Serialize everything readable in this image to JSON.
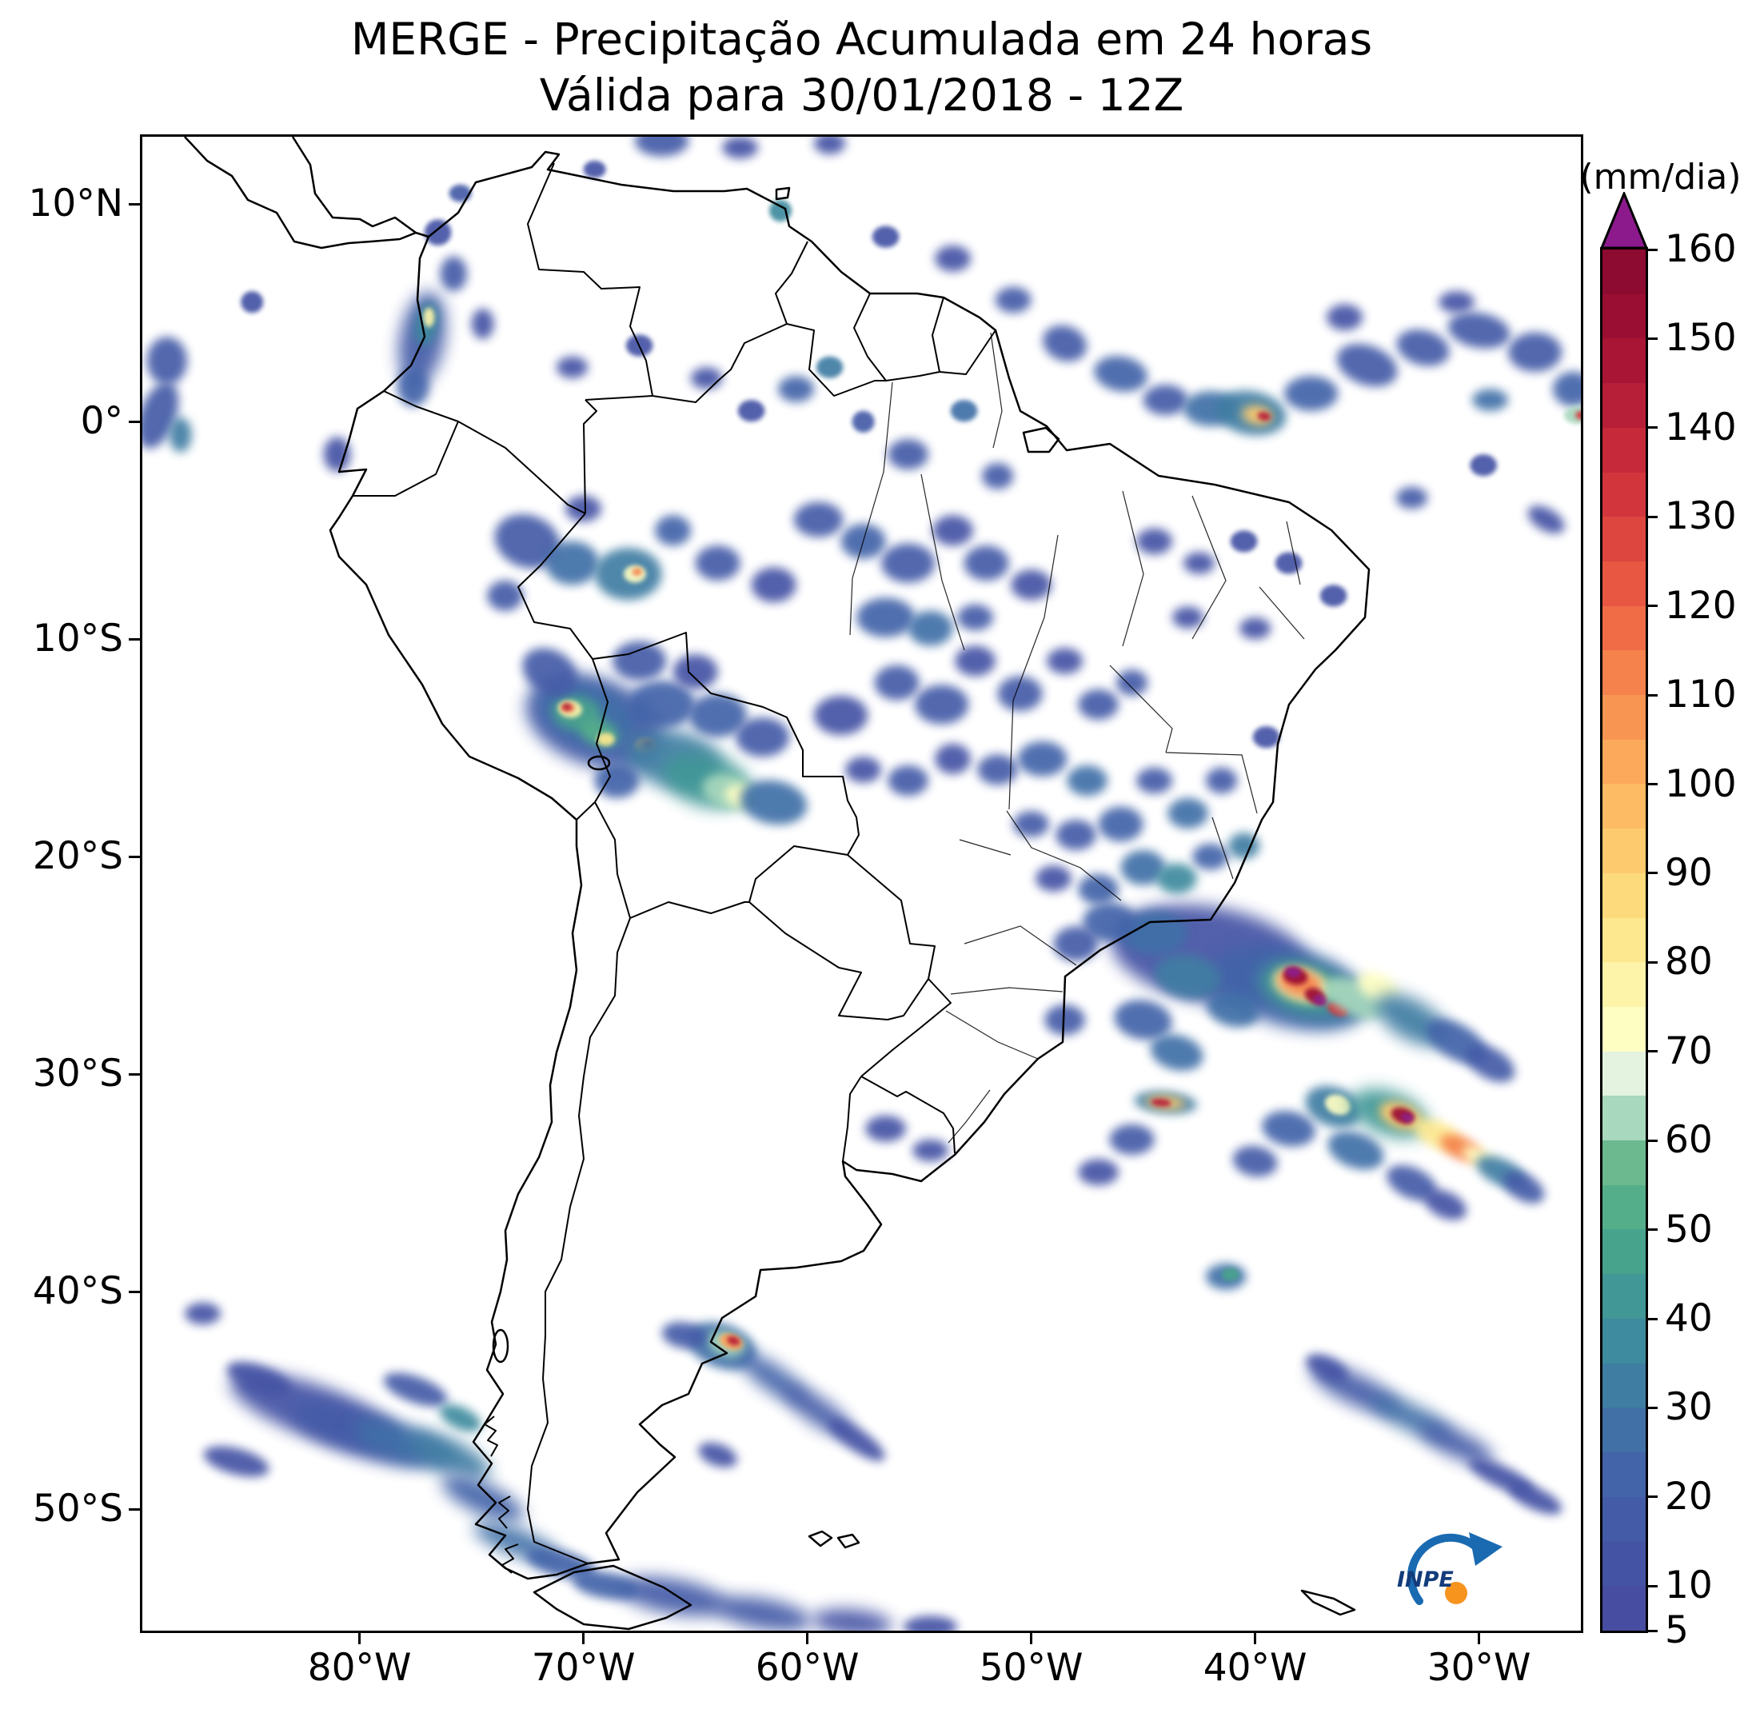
{
  "title": {
    "line1": "MERGE - Precipitação Acumulada em 24 horas",
    "line2": "Válida para 30/01/2018 - 12Z"
  },
  "colorbar": {
    "unit_label": "(mm/dia)",
    "vmin": 5,
    "vmax": 160,
    "step": 5,
    "tick_values": [
      160,
      150,
      140,
      130,
      120,
      110,
      100,
      90,
      80,
      70,
      60,
      50,
      40,
      30,
      20,
      10,
      5
    ],
    "segment_colors": [
      "#474da0",
      "#4553a4",
      "#445ba7",
      "#4364a9",
      "#4170a7",
      "#3f7da3",
      "#3e8a9e",
      "#419796",
      "#48a38d",
      "#55ae8a",
      "#6cb98f",
      "#a8d8bd",
      "#e3f3e0",
      "#fefec2",
      "#fdf3a9",
      "#fde88f",
      "#fdda7c",
      "#fdcb6e",
      "#fdbb63",
      "#fca95b",
      "#f99553",
      "#f5814c",
      "#ef6c46",
      "#e75742",
      "#dd453f",
      "#d2353c",
      "#c5293a",
      "#b71e38",
      "#a91535",
      "#9b0e33",
      "#8d0a30"
    ],
    "over_color": "#8c1a8c"
  },
  "axes": {
    "x_ticks": [
      {
        "label": "80°W",
        "lon": -80
      },
      {
        "label": "70°W",
        "lon": -70
      },
      {
        "label": "60°W",
        "lon": -60
      },
      {
        "label": "50°W",
        "lon": -50
      },
      {
        "label": "40°W",
        "lon": -40
      },
      {
        "label": "30°W",
        "lon": -30
      }
    ],
    "y_ticks": [
      {
        "label": "10°N",
        "lat": 10
      },
      {
        "label": "0°",
        "lat": 0
      },
      {
        "label": "10°S",
        "lat": -10
      },
      {
        "label": "20°S",
        "lat": -20
      },
      {
        "label": "30°S",
        "lat": -30
      },
      {
        "label": "40°S",
        "lat": -40
      },
      {
        "label": "50°S",
        "lat": -50
      }
    ]
  },
  "logo": {
    "label": "INPE"
  },
  "precip_blobs_format": [
    "lon_deg",
    "lat_deg",
    "rx_deg",
    "ry_deg",
    "rotation_deg",
    "value_mm_dia"
  ],
  "precip_blobs": [
    [
      -77.2,
      3.8,
      1.0,
      2.2,
      10,
      15
    ],
    [
      -77.0,
      4.5,
      0.5,
      1.0,
      10,
      35
    ],
    [
      -76.9,
      4.8,
      0.25,
      0.45,
      0,
      75
    ],
    [
      -77.6,
      1.6,
      0.7,
      0.9,
      0,
      20
    ],
    [
      -75.8,
      6.8,
      0.6,
      0.8,
      0,
      15
    ],
    [
      -74.5,
      4.5,
      0.5,
      0.7,
      0,
      10
    ],
    [
      -76.5,
      8.7,
      0.6,
      0.6,
      0,
      12
    ],
    [
      -75.5,
      10.5,
      0.5,
      0.4,
      0,
      15
    ],
    [
      -88.6,
      2.8,
      0.9,
      1.1,
      0,
      15
    ],
    [
      -89.0,
      0.3,
      0.8,
      1.6,
      20,
      18
    ],
    [
      -88.0,
      -0.6,
      0.5,
      0.8,
      0,
      30
    ],
    [
      -84.8,
      5.5,
      0.5,
      0.5,
      0,
      10
    ],
    [
      -66.5,
      12.9,
      1.2,
      0.7,
      0,
      15
    ],
    [
      -63.0,
      12.6,
      0.8,
      0.5,
      0,
      12
    ],
    [
      -61.2,
      9.7,
      0.5,
      0.5,
      0,
      35
    ],
    [
      -69.5,
      11.6,
      0.5,
      0.4,
      0,
      12
    ],
    [
      -59.0,
      12.8,
      0.7,
      0.5,
      0,
      10
    ],
    [
      -50.8,
      5.6,
      0.8,
      0.6,
      0,
      15
    ],
    [
      -48.5,
      3.6,
      1.0,
      0.8,
      20,
      18
    ],
    [
      -46.0,
      2.2,
      1.2,
      0.8,
      10,
      20
    ],
    [
      -44.0,
      1.0,
      1.0,
      0.7,
      0,
      18
    ],
    [
      -42.0,
      0.6,
      1.2,
      0.8,
      0,
      25
    ],
    [
      -40.2,
      0.4,
      1.6,
      1.0,
      10,
      30
    ],
    [
      -39.9,
      0.3,
      0.7,
      0.45,
      10,
      90
    ],
    [
      -39.6,
      0.25,
      0.3,
      0.2,
      10,
      140
    ],
    [
      -37.5,
      1.3,
      1.2,
      0.8,
      0,
      22
    ],
    [
      -35.0,
      2.6,
      1.4,
      0.9,
      20,
      18
    ],
    [
      -32.5,
      3.4,
      1.2,
      0.8,
      15,
      15
    ],
    [
      -30.0,
      4.2,
      1.4,
      0.8,
      10,
      15
    ],
    [
      -27.5,
      3.2,
      1.2,
      0.9,
      0,
      18
    ],
    [
      -25.8,
      1.5,
      0.9,
      0.8,
      0,
      20
    ],
    [
      -25.6,
      0.3,
      0.6,
      0.4,
      0,
      60
    ],
    [
      -25.4,
      0.3,
      0.3,
      0.2,
      0,
      130
    ],
    [
      -29.5,
      1.0,
      0.8,
      0.5,
      0,
      25
    ],
    [
      -33.0,
      -3.5,
      0.7,
      0.5,
      0,
      15
    ],
    [
      -29.8,
      -2.0,
      0.6,
      0.5,
      0,
      12
    ],
    [
      -27.0,
      -4.5,
      0.9,
      0.5,
      30,
      12
    ],
    [
      -31.0,
      5.5,
      0.8,
      0.5,
      0,
      12
    ],
    [
      -36.0,
      4.8,
      0.8,
      0.6,
      0,
      12
    ],
    [
      -53.5,
      7.5,
      0.8,
      0.6,
      0,
      12
    ],
    [
      -56.5,
      8.5,
      0.6,
      0.5,
      0,
      10
    ],
    [
      -60.5,
      1.5,
      0.8,
      0.6,
      0,
      20
    ],
    [
      -59.0,
      2.5,
      0.6,
      0.5,
      0,
      30
    ],
    [
      -55.5,
      -1.5,
      0.9,
      0.7,
      0,
      18
    ],
    [
      -53.0,
      0.5,
      0.6,
      0.5,
      0,
      25
    ],
    [
      -51.5,
      -2.5,
      0.7,
      0.6,
      0,
      15
    ],
    [
      -57.5,
      0.0,
      0.5,
      0.5,
      0,
      15
    ],
    [
      -62.5,
      0.5,
      0.6,
      0.5,
      0,
      12
    ],
    [
      -64.5,
      2.0,
      0.7,
      0.5,
      0,
      10
    ],
    [
      -70.5,
      2.5,
      0.7,
      0.5,
      0,
      10
    ],
    [
      -67.5,
      3.5,
      0.6,
      0.5,
      0,
      12
    ],
    [
      -72.5,
      -5.5,
      1.5,
      1.2,
      20,
      18
    ],
    [
      -70.5,
      -6.5,
      1.2,
      1.0,
      0,
      25
    ],
    [
      -68.0,
      -7.0,
      1.5,
      1.2,
      0,
      30
    ],
    [
      -67.7,
      -7.0,
      0.5,
      0.4,
      0,
      70
    ],
    [
      -67.6,
      -6.9,
      0.22,
      0.18,
      0,
      110
    ],
    [
      -73.5,
      -8.0,
      0.8,
      0.7,
      0,
      15
    ],
    [
      -66.0,
      -5.0,
      0.8,
      0.7,
      0,
      20
    ],
    [
      -64.0,
      -6.5,
      1.0,
      0.8,
      0,
      15
    ],
    [
      -70.0,
      -4.0,
      0.8,
      0.6,
      0,
      12
    ],
    [
      -69.5,
      -13.8,
      3.2,
      2.0,
      20,
      15
    ],
    [
      -69.8,
      -13.5,
      2.2,
      1.4,
      20,
      25
    ],
    [
      -70.3,
      -13.4,
      1.1,
      0.8,
      10,
      45
    ],
    [
      -70.6,
      -13.2,
      0.55,
      0.4,
      10,
      75
    ],
    [
      -70.7,
      -13.15,
      0.3,
      0.2,
      0,
      120
    ],
    [
      -70.75,
      -13.1,
      0.16,
      0.12,
      0,
      150
    ],
    [
      -69.3,
      -14.3,
      0.9,
      0.6,
      20,
      50
    ],
    [
      -69.0,
      -14.6,
      0.4,
      0.3,
      0,
      80
    ],
    [
      -67.2,
      -14.9,
      0.5,
      0.35,
      0,
      100
    ],
    [
      -67.1,
      -14.85,
      0.22,
      0.16,
      0,
      140
    ],
    [
      -66.0,
      -15.5,
      2.2,
      1.3,
      10,
      30
    ],
    [
      -64.5,
      -16.5,
      2.0,
      1.2,
      15,
      40
    ],
    [
      -63.5,
      -17.0,
      1.2,
      0.8,
      15,
      60
    ],
    [
      -63.0,
      -17.2,
      0.7,
      0.5,
      15,
      70
    ],
    [
      -61.5,
      -17.5,
      1.5,
      1.0,
      10,
      25
    ],
    [
      -66.5,
      -13.0,
      1.5,
      1.1,
      0,
      22
    ],
    [
      -64.0,
      -13.5,
      1.3,
      1.0,
      0,
      20
    ],
    [
      -62.0,
      -14.5,
      1.2,
      0.9,
      0,
      18
    ],
    [
      -68.5,
      -16.5,
      1.0,
      0.8,
      0,
      20
    ],
    [
      -71.5,
      -11.5,
      1.3,
      1.0,
      30,
      15
    ],
    [
      -67.5,
      -11.0,
      1.2,
      0.9,
      0,
      15
    ],
    [
      -65.0,
      -11.5,
      1.0,
      0.8,
      0,
      12
    ],
    [
      -58.5,
      -13.5,
      1.2,
      0.9,
      0,
      12
    ],
    [
      -56.0,
      -12.0,
      1.0,
      0.8,
      0,
      15
    ],
    [
      -54.0,
      -13.0,
      1.2,
      0.9,
      0,
      18
    ],
    [
      -52.5,
      -11.0,
      0.9,
      0.7,
      0,
      12
    ],
    [
      -50.5,
      -12.5,
      1.0,
      0.8,
      0,
      15
    ],
    [
      -48.5,
      -11.0,
      0.8,
      0.6,
      0,
      12
    ],
    [
      -47.0,
      -13.0,
      0.9,
      0.7,
      0,
      18
    ],
    [
      -45.5,
      -12.0,
      0.7,
      0.6,
      0,
      15
    ],
    [
      -49.5,
      -15.5,
      1.1,
      0.8,
      0,
      20
    ],
    [
      -47.5,
      -16.5,
      0.9,
      0.7,
      0,
      25
    ],
    [
      -51.5,
      -16.0,
      0.9,
      0.7,
      0,
      15
    ],
    [
      -53.5,
      -15.5,
      0.8,
      0.7,
      0,
      12
    ],
    [
      -55.5,
      -16.5,
      0.9,
      0.7,
      0,
      15
    ],
    [
      -57.5,
      -16.0,
      0.8,
      0.6,
      0,
      12
    ],
    [
      -46.0,
      -18.5,
      1.0,
      0.8,
      0,
      22
    ],
    [
      -48.0,
      -19.0,
      0.9,
      0.7,
      0,
      18
    ],
    [
      -50.0,
      -18.5,
      0.8,
      0.6,
      0,
      15
    ],
    [
      -44.5,
      -16.5,
      0.8,
      0.6,
      0,
      18
    ],
    [
      -43.0,
      -18.0,
      0.9,
      0.7,
      0,
      25
    ],
    [
      -41.5,
      -16.5,
      0.7,
      0.6,
      0,
      15
    ],
    [
      -45.0,
      -20.5,
      1.0,
      0.8,
      0,
      28
    ],
    [
      -43.5,
      -21.0,
      0.9,
      0.7,
      0,
      35
    ],
    [
      -42.0,
      -20.0,
      0.8,
      0.6,
      0,
      22
    ],
    [
      -40.5,
      -19.5,
      0.7,
      0.6,
      0,
      30
    ],
    [
      -47.0,
      -21.5,
      0.9,
      0.7,
      0,
      20
    ],
    [
      -49.0,
      -21.0,
      0.8,
      0.6,
      0,
      12
    ],
    [
      -39.5,
      -14.5,
      0.6,
      0.5,
      0,
      12
    ],
    [
      -59.5,
      -4.5,
      1.1,
      0.8,
      0,
      15
    ],
    [
      -57.5,
      -5.5,
      1.0,
      0.8,
      0,
      20
    ],
    [
      -55.5,
      -6.5,
      1.2,
      0.9,
      0,
      15
    ],
    [
      -53.5,
      -5.0,
      0.9,
      0.7,
      0,
      12
    ],
    [
      -52.0,
      -6.5,
      1.0,
      0.8,
      0,
      18
    ],
    [
      -50.0,
      -7.5,
      0.9,
      0.7,
      0,
      12
    ],
    [
      -61.5,
      -7.5,
      1.0,
      0.8,
      0,
      12
    ],
    [
      -56.5,
      -9.0,
      1.3,
      0.9,
      0,
      22
    ],
    [
      -54.5,
      -9.5,
      1.0,
      0.8,
      0,
      25
    ],
    [
      -52.5,
      -9.0,
      0.8,
      0.6,
      0,
      15
    ],
    [
      -44.5,
      -5.5,
      0.8,
      0.6,
      0,
      12
    ],
    [
      -42.5,
      -6.5,
      0.7,
      0.5,
      0,
      10
    ],
    [
      -40.5,
      -5.5,
      0.6,
      0.5,
      0,
      12
    ],
    [
      -38.5,
      -6.5,
      0.6,
      0.5,
      0,
      10
    ],
    [
      -36.5,
      -8.0,
      0.6,
      0.5,
      0,
      12
    ],
    [
      -40.0,
      -9.5,
      0.7,
      0.5,
      0,
      10
    ],
    [
      -43.0,
      -9.0,
      0.7,
      0.5,
      0,
      12
    ],
    [
      -42.0,
      -24.5,
      4.5,
      2.2,
      10,
      12
    ],
    [
      -38.5,
      -26.0,
      3.5,
      1.8,
      15,
      20
    ],
    [
      -37.5,
      -26.2,
      2.6,
      1.3,
      15,
      30
    ],
    [
      -37.8,
      -26.0,
      1.8,
      1.0,
      15,
      45
    ],
    [
      -37.9,
      -25.9,
      1.3,
      0.75,
      15,
      75
    ],
    [
      -38.0,
      -25.8,
      1.0,
      0.6,
      15,
      110
    ],
    [
      -38.2,
      -25.5,
      0.55,
      0.38,
      10,
      150
    ],
    [
      -38.3,
      -25.3,
      0.35,
      0.25,
      10,
      165
    ],
    [
      -37.3,
      -26.4,
      0.5,
      0.35,
      20,
      150
    ],
    [
      -37.1,
      -26.6,
      0.32,
      0.22,
      20,
      165
    ],
    [
      -36.3,
      -27.0,
      0.5,
      0.3,
      20,
      130
    ],
    [
      -35.5,
      -26.5,
      1.5,
      0.8,
      25,
      60
    ],
    [
      -34.5,
      -26.0,
      1.0,
      0.6,
      25,
      70
    ],
    [
      -33.0,
      -27.5,
      1.8,
      0.9,
      30,
      30
    ],
    [
      -31.0,
      -28.5,
      1.5,
      0.8,
      30,
      20
    ],
    [
      -29.5,
      -29.5,
      1.2,
      0.7,
      30,
      15
    ],
    [
      -44.5,
      -23.5,
      1.5,
      1.0,
      0,
      25
    ],
    [
      -46.5,
      -23.0,
      1.2,
      0.9,
      0,
      20
    ],
    [
      -48.0,
      -24.0,
      1.0,
      0.8,
      0,
      15
    ],
    [
      -43.0,
      -25.5,
      1.5,
      1.0,
      10,
      30
    ],
    [
      -41.0,
      -27.0,
      1.2,
      0.8,
      15,
      25
    ],
    [
      -45.0,
      -27.5,
      1.3,
      0.9,
      10,
      20
    ],
    [
      -43.5,
      -29.0,
      1.2,
      0.8,
      15,
      25
    ],
    [
      -48.5,
      -27.5,
      0.9,
      0.7,
      0,
      18
    ],
    [
      -44.0,
      -31.3,
      1.4,
      0.5,
      5,
      30
    ],
    [
      -44.0,
      -31.3,
      0.9,
      0.3,
      5,
      90
    ],
    [
      -44.2,
      -31.3,
      0.45,
      0.18,
      5,
      140
    ],
    [
      -36.5,
      -31.5,
      1.3,
      0.9,
      20,
      30
    ],
    [
      -36.3,
      -31.4,
      0.6,
      0.45,
      20,
      70
    ],
    [
      -34.0,
      -31.8,
      1.8,
      1.0,
      20,
      40
    ],
    [
      -33.5,
      -31.9,
      1.0,
      0.6,
      20,
      90
    ],
    [
      -33.4,
      -31.9,
      0.55,
      0.35,
      20,
      150
    ],
    [
      -33.2,
      -32.0,
      0.3,
      0.2,
      20,
      165
    ],
    [
      -31.8,
      -32.8,
      1.2,
      0.6,
      25,
      80
    ],
    [
      -30.8,
      -33.4,
      1.0,
      0.5,
      25,
      110
    ],
    [
      -30.0,
      -33.8,
      0.8,
      0.4,
      25,
      70
    ],
    [
      -29.0,
      -34.5,
      1.2,
      0.6,
      25,
      30
    ],
    [
      -28.0,
      -35.2,
      1.0,
      0.6,
      30,
      18
    ],
    [
      -38.5,
      -32.5,
      1.2,
      0.8,
      10,
      22
    ],
    [
      -40.0,
      -34.0,
      1.0,
      0.7,
      10,
      15
    ],
    [
      -35.5,
      -33.5,
      1.3,
      0.8,
      20,
      25
    ],
    [
      -33.0,
      -35.0,
      1.2,
      0.7,
      25,
      18
    ],
    [
      -31.5,
      -36.0,
      1.0,
      0.6,
      25,
      12
    ],
    [
      -41.3,
      -39.3,
      0.9,
      0.6,
      0,
      25
    ],
    [
      -41.1,
      -39.2,
      0.4,
      0.3,
      0,
      45
    ],
    [
      -45.5,
      -33.0,
      1.0,
      0.7,
      0,
      18
    ],
    [
      -47.0,
      -34.5,
      0.9,
      0.6,
      0,
      12
    ],
    [
      -56.5,
      -32.5,
      0.9,
      0.6,
      0,
      12
    ],
    [
      -54.5,
      -33.5,
      0.8,
      0.5,
      0,
      10
    ],
    [
      -63.8,
      -42.5,
      1.6,
      1.0,
      20,
      25
    ],
    [
      -63.6,
      -42.4,
      0.9,
      0.55,
      20,
      60
    ],
    [
      -63.4,
      -42.3,
      0.55,
      0.35,
      20,
      100
    ],
    [
      -63.3,
      -42.25,
      0.3,
      0.2,
      20,
      140
    ],
    [
      -65.5,
      -42.0,
      1.0,
      0.6,
      10,
      15
    ],
    [
      -61.5,
      -44.0,
      1.8,
      0.6,
      35,
      20
    ],
    [
      -59.5,
      -45.5,
      1.8,
      0.6,
      35,
      15
    ],
    [
      -57.8,
      -46.8,
      1.5,
      0.5,
      35,
      12
    ],
    [
      -82.0,
      -45.5,
      4.0,
      1.2,
      20,
      12
    ],
    [
      -80.0,
      -46.5,
      3.2,
      1.0,
      20,
      18
    ],
    [
      -78.0,
      -47.0,
      2.4,
      0.8,
      20,
      25
    ],
    [
      -76.0,
      -47.5,
      2.0,
      0.7,
      25,
      30
    ],
    [
      -74.5,
      -49.5,
      2.0,
      0.7,
      25,
      20
    ],
    [
      -77.5,
      -44.5,
      1.5,
      0.6,
      20,
      15
    ],
    [
      -84.5,
      -44.0,
      1.5,
      0.6,
      20,
      10
    ],
    [
      -73.0,
      -51.5,
      2.0,
      0.6,
      20,
      25
    ],
    [
      -71.0,
      -52.5,
      1.6,
      0.6,
      15,
      20
    ],
    [
      -75.5,
      -45.8,
      1.0,
      0.5,
      25,
      35
    ],
    [
      -87.0,
      -41.0,
      0.8,
      0.5,
      0,
      12
    ],
    [
      -85.5,
      -47.8,
      1.5,
      0.6,
      15,
      10
    ],
    [
      -66.0,
      -54.0,
      2.5,
      0.8,
      10,
      18
    ],
    [
      -62.0,
      -54.8,
      2.2,
      0.7,
      10,
      15
    ],
    [
      -58.0,
      -55.2,
      1.8,
      0.6,
      5,
      12
    ],
    [
      -69.0,
      -53.5,
      1.5,
      0.6,
      10,
      22
    ],
    [
      -54.5,
      -55.4,
      1.2,
      0.5,
      0,
      10
    ],
    [
      -64.0,
      -47.5,
      0.9,
      0.5,
      20,
      12
    ],
    [
      -35.5,
      -44.5,
      2.2,
      0.7,
      25,
      15
    ],
    [
      -33.0,
      -45.8,
      2.0,
      0.6,
      25,
      25
    ],
    [
      -31.0,
      -47.0,
      1.8,
      0.6,
      25,
      18
    ],
    [
      -29.0,
      -48.5,
      1.6,
      0.5,
      25,
      12
    ],
    [
      -27.5,
      -49.5,
      1.3,
      0.5,
      25,
      10
    ],
    [
      -36.8,
      -43.5,
      1.0,
      0.5,
      25,
      10
    ],
    [
      -81.0,
      -1.5,
      0.6,
      0.8,
      0,
      12
    ]
  ]
}
